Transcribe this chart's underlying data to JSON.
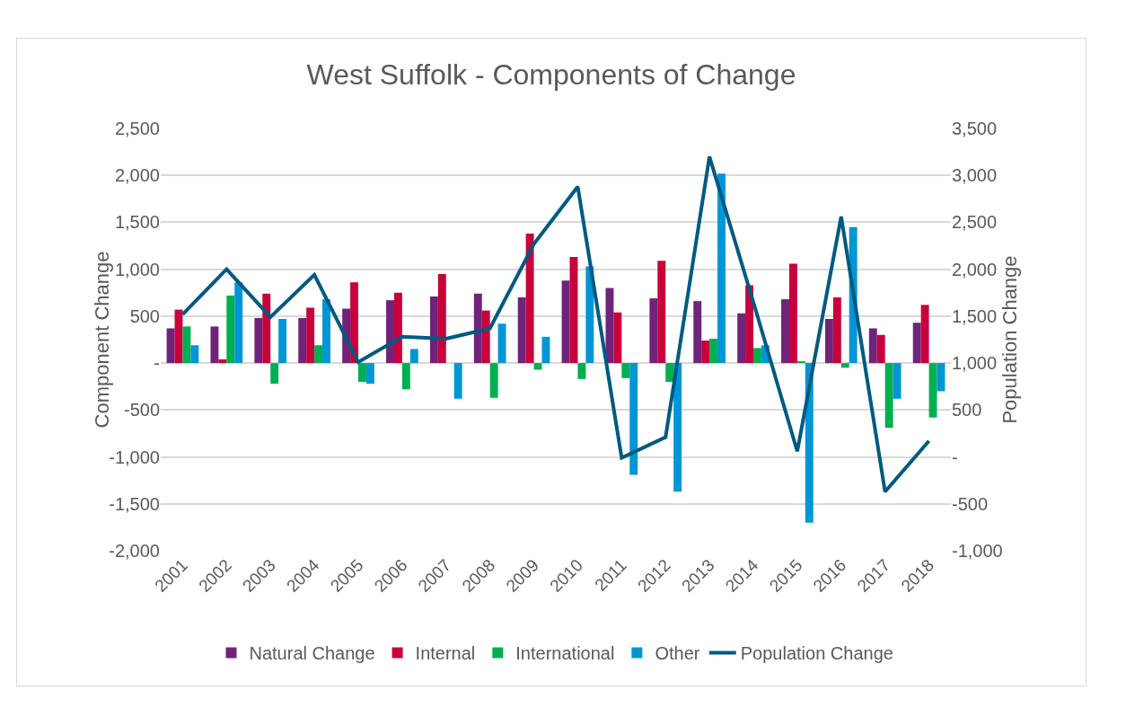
{
  "chart_data": {
    "type": "bar",
    "title": "West Suffolk - Components of Change",
    "ylabel": "Component Change",
    "y2label": "Population Change",
    "categories": [
      "2001",
      "2002",
      "2003",
      "2004",
      "2005",
      "2006",
      "2007",
      "2008",
      "2009",
      "2010",
      "2011",
      "2012",
      "2013",
      "2014",
      "2015",
      "2016",
      "2017",
      "2018"
    ],
    "series": [
      {
        "name": "Natural Change",
        "color": "#70237a",
        "values": [
          370,
          390,
          480,
          480,
          580,
          670,
          710,
          740,
          700,
          880,
          800,
          690,
          660,
          530,
          680,
          470,
          370,
          430
        ]
      },
      {
        "name": "Internal",
        "color": "#c8003c",
        "values": [
          570,
          40,
          740,
          590,
          860,
          750,
          950,
          560,
          1380,
          1130,
          540,
          1090,
          240,
          830,
          1060,
          700,
          300,
          620
        ]
      },
      {
        "name": "International",
        "color": "#00b050",
        "values": [
          390,
          720,
          -220,
          190,
          -200,
          -280,
          null,
          -370,
          -70,
          -170,
          -160,
          -200,
          260,
          160,
          20,
          -50,
          -690,
          -580
        ]
      },
      {
        "name": "Other",
        "color": "#0096d6",
        "values": [
          190,
          860,
          470,
          680,
          -220,
          150,
          -380,
          420,
          280,
          1030,
          -1190,
          -1370,
          2020,
          190,
          -1700,
          1450,
          -380,
          -300
        ]
      },
      {
        "name": "Population Change",
        "type": "line",
        "axis": "y2",
        "color": "#005a80",
        "values": [
          1520,
          2000,
          1490,
          1940,
          1010,
          1280,
          1260,
          1370,
          2270,
          2880,
          -10,
          210,
          3200,
          1650,
          60,
          2560,
          -370,
          170
        ]
      }
    ],
    "ylim": [
      -2000,
      2500
    ],
    "yticks": [
      {
        "value": -2000,
        "label": "-2,000"
      },
      {
        "value": -1500,
        "label": "-1,500"
      },
      {
        "value": -1000,
        "label": "-1,000"
      },
      {
        "value": -500,
        "label": "-500"
      },
      {
        "value": 0,
        "label": "-"
      },
      {
        "value": 500,
        "label": "500"
      },
      {
        "value": 1000,
        "label": "1,000"
      },
      {
        "value": 1500,
        "label": "1,500"
      },
      {
        "value": 2000,
        "label": "2,000"
      },
      {
        "value": 2500,
        "label": "2,500"
      }
    ],
    "y2lim": [
      -1000,
      3500
    ],
    "y2ticks": [
      {
        "value": -1000,
        "label": "-1,000"
      },
      {
        "value": -500,
        "label": "-500"
      },
      {
        "value": 0,
        "label": "-"
      },
      {
        "value": 500,
        "label": "500"
      },
      {
        "value": 1000,
        "label": "1,000"
      },
      {
        "value": 1500,
        "label": "1,500"
      },
      {
        "value": 2000,
        "label": "2,000"
      },
      {
        "value": 2500,
        "label": "2,500"
      },
      {
        "value": 3000,
        "label": "3,000"
      },
      {
        "value": 3500,
        "label": "3,500"
      }
    ],
    "grid": "y",
    "legend": "bottom"
  }
}
